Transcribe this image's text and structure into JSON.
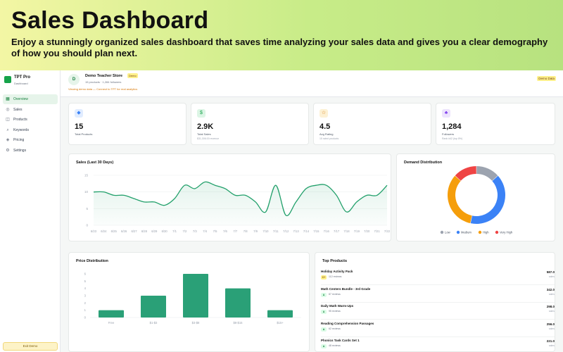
{
  "banner": {
    "title": "Sales Dashboard",
    "subtitle": "Enjoy a stunningly organized sales dashboard that saves time analyzing your sales data and gives you a clear demography of how you should plan next."
  },
  "sidebar": {
    "brand_name": "TPT Pro",
    "brand_sub": "Dashboard",
    "items": [
      {
        "label": "Overview",
        "icon": "grid-icon",
        "glyph": "▦",
        "active": true
      },
      {
        "label": "Sales",
        "icon": "dollar-icon",
        "glyph": "◎",
        "active": false
      },
      {
        "label": "Products",
        "icon": "box-icon",
        "glyph": "◫",
        "active": false
      },
      {
        "label": "Keywords",
        "icon": "search-icon",
        "glyph": "⌕",
        "active": false
      },
      {
        "label": "Pricing",
        "icon": "tag-icon",
        "glyph": "◈",
        "active": false
      },
      {
        "label": "Settings",
        "icon": "gear-icon",
        "glyph": "⚙",
        "active": false
      }
    ],
    "exit_label": "Exit Demo"
  },
  "header": {
    "avatar_letter": "D",
    "store_name": "Demo Teacher Store",
    "demo_tag": "Demo",
    "store_meta": "15 products · 1,284 followers",
    "note": "Viewing demo data — Connect to TPT for real analytics",
    "badge": "Demo Data"
  },
  "stats": [
    {
      "value": "15",
      "label": "Total Products",
      "sub": "",
      "icon": "box-icon",
      "glyph": "◆",
      "color": "#3b82f6",
      "bg": "#e0ecff"
    },
    {
      "value": "2.9K",
      "label": "Total Sales",
      "sub": "$31,306.00 revenue",
      "icon": "dollar-icon",
      "glyph": "$",
      "color": "#16a34a",
      "bg": "#dcf5e5"
    },
    {
      "value": "4.5",
      "label": "Avg Rating",
      "sub": "15 rated products",
      "icon": "star-icon",
      "glyph": "☆",
      "color": "#d97706",
      "bg": "#fdf1d4"
    },
    {
      "value": "1,284",
      "label": "Followers",
      "sub": "Rank #42 (top 8%)",
      "icon": "users-icon",
      "glyph": "♣",
      "color": "#7c3aed",
      "bg": "#ede4fd"
    }
  ],
  "sales_chart": {
    "title": "Sales (Last 30 Days)"
  },
  "demand_chart": {
    "title": "Demand Distribution"
  },
  "price_chart": {
    "title": "Price Distribution"
  },
  "top_products": {
    "title": "Top Products",
    "items": [
      {
        "name": "Holiday Activity Pack",
        "badge": "C+",
        "badge_bg": "#fef08a",
        "badge_color": "#854d0e",
        "reviews": "112 reviews",
        "value": "587.0",
        "unit": "sales"
      },
      {
        "name": "Math Centers Bundle - 3rd Grade",
        "badge": "A",
        "badge_bg": "#dcfce7",
        "badge_color": "#15803d",
        "reviews": "87 reviews",
        "value": "342.0",
        "unit": "sales"
      },
      {
        "name": "Daily Math Warm-Ups",
        "badge": "A",
        "badge_bg": "#dcfce7",
        "badge_color": "#15803d",
        "reviews": "95 reviews",
        "value": "298.0",
        "unit": "sales"
      },
      {
        "name": "Reading Comprehension Passages",
        "badge": "A",
        "badge_bg": "#dcfce7",
        "badge_color": "#15803d",
        "reviews": "62 reviews",
        "value": "256.0",
        "unit": "sales"
      },
      {
        "name": "Phonics Task Cards Set 1",
        "badge": "A",
        "badge_bg": "#dcfce7",
        "badge_color": "#15803d",
        "reviews": "48 reviews",
        "value": "221.0",
        "unit": "sales"
      }
    ]
  },
  "chart_data": [
    {
      "type": "area",
      "title": "Sales (Last 30 Days)",
      "categories": [
        "6/23",
        "6/24",
        "6/25",
        "6/26",
        "6/27",
        "6/28",
        "6/29",
        "6/30",
        "7/1",
        "7/2",
        "7/3",
        "7/4",
        "7/5",
        "7/6",
        "7/7",
        "7/8",
        "7/9",
        "7/10",
        "7/11",
        "7/12",
        "7/13",
        "7/14",
        "7/15",
        "7/16",
        "7/17",
        "7/18",
        "7/19",
        "7/20",
        "7/21",
        "7/22"
      ],
      "values": [
        10,
        10,
        9,
        9,
        8,
        7,
        7,
        6,
        8,
        12,
        11,
        13,
        12,
        11,
        9,
        9,
        7,
        4,
        12,
        3,
        7,
        11,
        12,
        12,
        9,
        4,
        7,
        9,
        9,
        12
      ],
      "ylim": [
        0,
        15
      ],
      "yticks": [
        0,
        5,
        10,
        15
      ],
      "color": "#22a06b"
    },
    {
      "type": "pie",
      "title": "Demand Distribution",
      "categories": [
        "Low",
        "Medium",
        "High",
        "Very High"
      ],
      "values": [
        2,
        6,
        5,
        2
      ],
      "colors": [
        "#9ca3af",
        "#3b82f6",
        "#f59e0b",
        "#ef4444"
      ]
    },
    {
      "type": "bar",
      "title": "Price Distribution",
      "categories": [
        "Free",
        "$1-$3",
        "$3-$8",
        "$8-$15",
        "$15+"
      ],
      "values": [
        1,
        3,
        6,
        4,
        1
      ],
      "ylim": [
        0,
        6
      ],
      "yticks": [
        0,
        1,
        2,
        3,
        4,
        5,
        6
      ],
      "color": "#2aa077"
    }
  ]
}
